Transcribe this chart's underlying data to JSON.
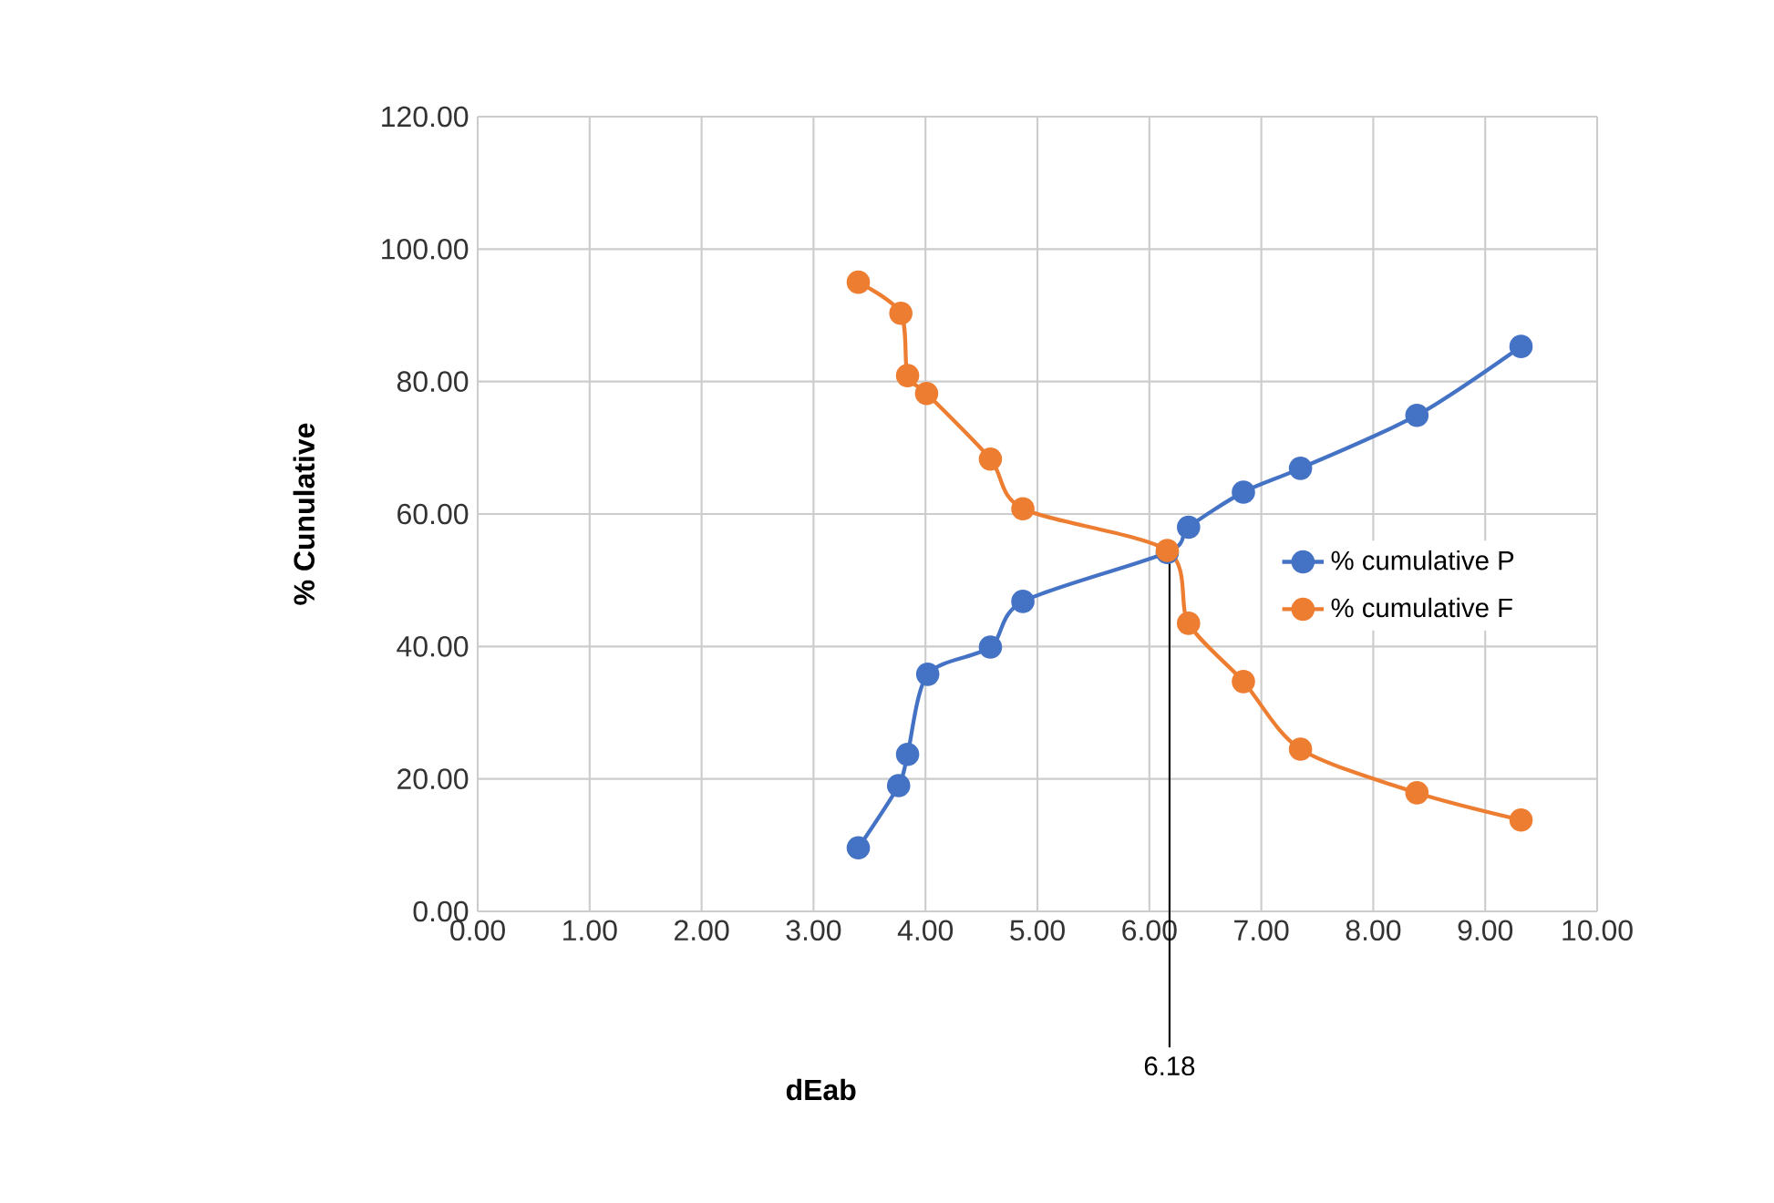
{
  "chart_data": {
    "type": "line",
    "xlabel": "dEab",
    "ylabel": "% Cunulative",
    "xlim": [
      0,
      10
    ],
    "xticks": [
      {
        "value": 0,
        "label": "0.00"
      },
      {
        "value": 1,
        "label": "1.00"
      },
      {
        "value": 2,
        "label": "2.00"
      },
      {
        "value": 3,
        "label": "3.00"
      },
      {
        "value": 4,
        "label": "4.00"
      },
      {
        "value": 5,
        "label": "5.00"
      },
      {
        "value": 6,
        "label": "6.00"
      },
      {
        "value": 7,
        "label": "7.00"
      },
      {
        "value": 8,
        "label": "8.00"
      },
      {
        "value": 9,
        "label": "9.00"
      },
      {
        "value": 10,
        "label": "10.00"
      }
    ],
    "ylim": [
      0,
      120
    ],
    "yticks": [
      {
        "value": 0,
        "label": "0.00"
      },
      {
        "value": 20,
        "label": "20.00"
      },
      {
        "value": 40,
        "label": "40.00"
      },
      {
        "value": 60,
        "label": "60.00"
      },
      {
        "value": 80,
        "label": "80.00"
      },
      {
        "value": 100,
        "label": "100.00"
      },
      {
        "value": 120,
        "label": "120.00"
      }
    ],
    "grid": true,
    "legend": "right",
    "marker": "circle",
    "line_style": "solid",
    "series": [
      {
        "name": "% cumulative P",
        "color": "#4472c4",
        "x": [
          3.4,
          3.76,
          3.84,
          4.02,
          4.58,
          4.87,
          6.16,
          6.35,
          6.84,
          7.35,
          8.39,
          9.32
        ],
        "values": [
          9.6,
          19,
          23.7,
          35.8,
          39.9,
          46.8,
          54.2,
          58,
          63.3,
          66.9,
          74.9,
          85.3
        ]
      },
      {
        "name": "% cumulative F",
        "color": "#ed7d31",
        "x": [
          3.4,
          3.78,
          3.84,
          4.01,
          4.58,
          4.87,
          6.16,
          6.35,
          6.84,
          7.35,
          8.39,
          9.32
        ],
        "values": [
          95,
          90.3,
          80.9,
          78.2,
          68.3,
          60.8,
          54.5,
          43.5,
          34.7,
          24.5,
          17.9,
          13.8
        ]
      }
    ],
    "ref_lines": [
      {
        "axis": "x",
        "value": 6.18,
        "label": "6.18",
        "color": "#000000"
      }
    ]
  }
}
